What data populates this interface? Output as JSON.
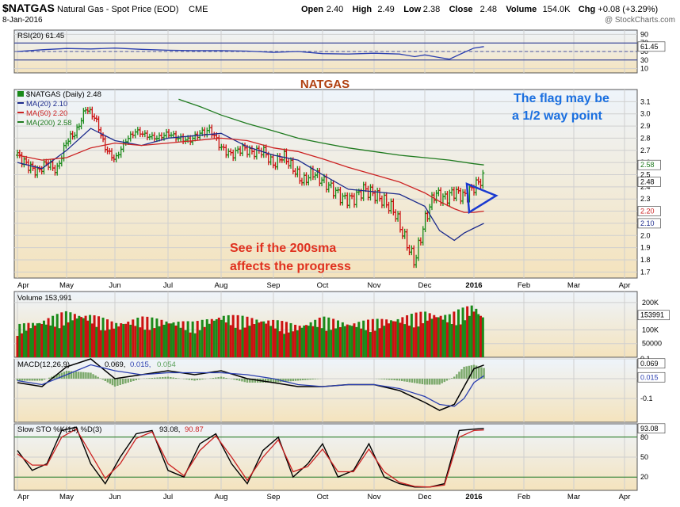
{
  "header": {
    "ticker": "$NATGAS",
    "name": "Natural Gas - Spot Price (EOD)",
    "exchange": "CME",
    "date": "8-Jan-2016",
    "watermark": "@ StockCharts.com",
    "ohlc": [
      {
        "label": "Open",
        "value": "2.40"
      },
      {
        "label": "High",
        "value": "2.49"
      },
      {
        "label": "Low",
        "value": "2.38"
      },
      {
        "label": "Close",
        "value": "2.48"
      },
      {
        "label": "Volume",
        "value": "154.0K"
      },
      {
        "label": "Chg",
        "value": "+0.08 (+3.29%)"
      }
    ]
  },
  "colors": {
    "bg": "#ffffff",
    "panel_top": "#eef4fb",
    "panel_bottom": "#f4e3bd",
    "grid": "#cfcfcf",
    "ma20": "#1b2a8c",
    "ma50": "#cc2222",
    "ma200": "#1e7a1e",
    "up": "#1a8a1a",
    "down": "#cc1111",
    "annotation_red": "#e0301e",
    "annotation_blue": "#1a6fe0",
    "title_orange": "#b04010",
    "triangle": "#1a3ad0"
  },
  "chart_data": [
    {
      "type": "line",
      "title": "RSI(20) 61.45",
      "x_months": [
        "Apr",
        "May",
        "Jun",
        "Jul",
        "Aug",
        "Sep",
        "Oct",
        "Nov",
        "Dec",
        "2016",
        "Feb",
        "Mar",
        "Apr"
      ],
      "ylim": [
        0,
        100
      ],
      "yticks": [
        10,
        30,
        50,
        70,
        90
      ],
      "reference_lines": [
        30,
        70
      ],
      "last_value_label": "61.45",
      "series": [
        {
          "name": "RSI(20)",
          "x": [
            0,
            0.5,
            1,
            1.5,
            2,
            2.5,
            3,
            3.5,
            4,
            4.5,
            5,
            5.5,
            6,
            6.5,
            7,
            7.5,
            7.8,
            8,
            8.3,
            8.5,
            8.8,
            9,
            9.2
          ],
          "y": [
            50,
            54,
            57,
            56,
            58,
            55,
            53,
            52,
            52,
            51,
            48,
            50,
            45,
            44,
            46,
            44,
            38,
            42,
            36,
            32,
            48,
            58,
            61.45
          ]
        }
      ]
    },
    {
      "type": "bar",
      "title": "$NATGAS (Daily) 2.48",
      "chart_label": "NATGAS",
      "x_months": [
        "Apr",
        "May",
        "Jun",
        "Jul",
        "Aug",
        "Sep",
        "Oct",
        "Nov",
        "Dec",
        "2016",
        "Feb",
        "Mar",
        "Apr"
      ],
      "ylim": [
        1.65,
        3.2
      ],
      "yticks": [
        1.7,
        1.8,
        1.9,
        2.0,
        2.1,
        2.2,
        2.3,
        2.4,
        2.5,
        2.6,
        2.7,
        2.8,
        2.9,
        3.0,
        3.1
      ],
      "yaxis_badges": [
        "2.58",
        "2.48",
        "2.20",
        "2.10"
      ],
      "legend": [
        {
          "name": "$NATGAS (Daily) 2.48",
          "color": "#000000"
        },
        {
          "name": "MA(20) 2.10",
          "color": "#1b2a8c"
        },
        {
          "name": "MA(50) 2.20",
          "color": "#cc2222"
        },
        {
          "name": "MA(200) 2.58",
          "color": "#1e7a1e"
        }
      ],
      "series": [
        {
          "name": "$NATGAS (Daily)",
          "x": [
            0,
            0.2,
            0.4,
            0.6,
            0.8,
            1,
            1.2,
            1.4,
            1.6,
            1.8,
            2,
            2.2,
            2.4,
            2.6,
            2.8,
            3,
            3.2,
            3.4,
            3.6,
            3.8,
            4,
            4.2,
            4.4,
            4.6,
            4.8,
            5,
            5.2,
            5.4,
            5.6,
            5.8,
            6,
            6.2,
            6.4,
            6.6,
            6.8,
            7,
            7.2,
            7.4,
            7.6,
            7.8,
            8,
            8.2,
            8.4,
            8.6,
            8.8,
            9,
            9.2
          ],
          "y": [
            2.66,
            2.58,
            2.52,
            2.6,
            2.53,
            2.78,
            2.85,
            3.05,
            2.96,
            2.72,
            2.62,
            2.78,
            2.86,
            2.82,
            2.8,
            2.84,
            2.8,
            2.78,
            2.84,
            2.87,
            2.72,
            2.66,
            2.72,
            2.68,
            2.7,
            2.58,
            2.66,
            2.55,
            2.44,
            2.52,
            2.45,
            2.38,
            2.3,
            2.3,
            2.38,
            2.34,
            2.28,
            2.2,
            1.98,
            1.78,
            2.12,
            2.35,
            2.3,
            2.36,
            2.32,
            2.4,
            2.48
          ]
        },
        {
          "name": "MA(20)",
          "x": [
            0,
            0.5,
            1,
            1.5,
            2,
            2.5,
            3,
            3.5,
            4,
            4.5,
            5,
            5.5,
            6,
            6.5,
            7,
            7.5,
            8,
            8.3,
            8.6,
            8.8,
            9,
            9.2
          ],
          "y": [
            2.6,
            2.55,
            2.7,
            2.88,
            2.78,
            2.74,
            2.8,
            2.82,
            2.84,
            2.73,
            2.66,
            2.62,
            2.5,
            2.38,
            2.36,
            2.34,
            2.24,
            2.04,
            1.96,
            2.02,
            2.06,
            2.1
          ]
        },
        {
          "name": "MA(50)",
          "x": [
            0,
            0.5,
            1,
            1.5,
            2,
            2.5,
            3,
            3.5,
            4,
            4.5,
            5,
            5.5,
            6,
            6.5,
            7,
            7.5,
            8,
            8.3,
            8.6,
            8.8,
            9,
            9.2
          ],
          "y": [
            2.66,
            2.62,
            2.64,
            2.72,
            2.76,
            2.74,
            2.76,
            2.78,
            2.8,
            2.78,
            2.72,
            2.69,
            2.63,
            2.56,
            2.5,
            2.44,
            2.35,
            2.28,
            2.22,
            2.19,
            2.19,
            2.2
          ]
        },
        {
          "name": "MA(200)",
          "x": [
            3.2,
            3.6,
            4,
            4.5,
            5,
            5.5,
            6,
            6.5,
            7,
            7.5,
            8,
            8.5,
            9,
            9.2
          ],
          "y": [
            3.12,
            3.06,
            2.99,
            2.92,
            2.86,
            2.8,
            2.76,
            2.72,
            2.69,
            2.66,
            2.64,
            2.62,
            2.59,
            2.58
          ]
        }
      ],
      "annotations": [
        {
          "text": "The flag may be"
        },
        {
          "text": "a 1/2 way point"
        },
        {
          "text": "See if the 200sma"
        },
        {
          "text": "affects the progress"
        }
      ]
    },
    {
      "type": "bar",
      "title": "Volume 153,991",
      "x_months": [
        "Apr",
        "May",
        "Jun",
        "Jul",
        "Aug",
        "Sep",
        "Oct",
        "Nov",
        "Dec",
        "2016",
        "Feb",
        "Mar",
        "Apr"
      ],
      "ylim": [
        0,
        240000
      ],
      "yticks_labels": [
        "200K",
        "100K",
        "50000"
      ],
      "last_value_label": "153991",
      "series": [
        {
          "name": "Volume",
          "x": [
            0,
            0.5,
            1,
            1.5,
            2,
            2.5,
            3,
            3.5,
            4,
            4.5,
            5,
            5.5,
            6,
            6.5,
            7,
            7.5,
            8,
            8.5,
            9,
            9.2
          ],
          "y": [
            120000,
            140000,
            170000,
            160000,
            130000,
            150000,
            140000,
            130000,
            160000,
            150000,
            140000,
            120000,
            150000,
            130000,
            140000,
            150000,
            170000,
            160000,
            200000,
            153991
          ]
        }
      ]
    },
    {
      "type": "line",
      "title": "MACD(12,26,9) 0.069, 0.015, 0.054",
      "title_parts": {
        "name": "MACD(12,26,9)",
        "macd": "0.069",
        "signal": "0.015",
        "hist": "0.054"
      },
      "x_months": [
        "Apr",
        "May",
        "Jun",
        "Jul",
        "Aug",
        "Sep",
        "Oct",
        "Nov",
        "Dec",
        "2016",
        "Feb",
        "Mar",
        "Apr"
      ],
      "ylim": [
        -0.22,
        0.1
      ],
      "yticks": [
        -0.1,
        0.0,
        0.1
      ],
      "last_value_labels": [
        "0.069",
        "0.015"
      ],
      "series": [
        {
          "name": "MACD",
          "x": [
            0,
            0.5,
            1,
            1.5,
            2,
            2.5,
            3,
            3.5,
            4,
            4.5,
            5,
            5.5,
            6,
            6.5,
            7,
            7.5,
            8,
            8.3,
            8.6,
            8.8,
            9,
            9.2
          ],
          "y": [
            -0.02,
            -0.04,
            0.06,
            0.1,
            0.0,
            0.02,
            0.04,
            0.02,
            0.04,
            0.0,
            -0.02,
            -0.04,
            -0.04,
            -0.03,
            -0.03,
            -0.06,
            -0.12,
            -0.16,
            -0.13,
            -0.04,
            0.05,
            0.069
          ]
        },
        {
          "name": "Signal",
          "x": [
            0,
            0.5,
            1,
            1.5,
            2,
            2.5,
            3,
            3.5,
            4,
            4.5,
            5,
            5.5,
            6,
            6.5,
            7,
            7.5,
            8,
            8.3,
            8.6,
            8.8,
            9,
            9.2
          ],
          "y": [
            -0.01,
            -0.03,
            0.02,
            0.07,
            0.04,
            0.02,
            0.03,
            0.03,
            0.03,
            0.02,
            0.0,
            -0.03,
            -0.04,
            -0.03,
            -0.03,
            -0.05,
            -0.09,
            -0.13,
            -0.14,
            -0.1,
            -0.02,
            0.015
          ]
        }
      ]
    },
    {
      "type": "line",
      "title": "Slow STO %K(14) %D(3) 93.08, 90.87",
      "title_parts": {
        "name": "Slow STO %K(14) %D(3)",
        "k": "93.08",
        "d": "90.87"
      },
      "x_months": [
        "Apr",
        "May",
        "Jun",
        "Jul",
        "Aug",
        "Sep",
        "Oct",
        "Nov",
        "Dec",
        "2016",
        "Feb",
        "Mar",
        "Apr"
      ],
      "ylim": [
        0,
        100
      ],
      "yticks": [
        20,
        50,
        80
      ],
      "reference_lines": [
        20,
        80
      ],
      "last_value_label": "93.08",
      "series": [
        {
          "name": "%K",
          "x": [
            0,
            0.3,
            0.6,
            0.9,
            1.2,
            1.5,
            1.8,
            2.1,
            2.4,
            2.7,
            3,
            3.3,
            3.6,
            3.9,
            4.2,
            4.5,
            4.8,
            5.1,
            5.4,
            5.7,
            6,
            6.3,
            6.6,
            6.9,
            7.2,
            7.5,
            7.8,
            8.1,
            8.4,
            8.7,
            9,
            9.2
          ],
          "y": [
            60,
            30,
            40,
            90,
            95,
            40,
            10,
            50,
            85,
            90,
            30,
            20,
            70,
            85,
            40,
            10,
            60,
            80,
            20,
            40,
            70,
            20,
            30,
            70,
            20,
            10,
            5,
            5,
            10,
            90,
            92,
            93.08
          ]
        },
        {
          "name": "%D",
          "x": [
            0,
            0.3,
            0.6,
            0.9,
            1.2,
            1.5,
            1.8,
            2.1,
            2.4,
            2.7,
            3,
            3.3,
            3.6,
            3.9,
            4.2,
            4.5,
            4.8,
            5.1,
            5.4,
            5.7,
            6,
            6.3,
            6.6,
            6.9,
            7.2,
            7.5,
            7.8,
            8.1,
            8.4,
            8.7,
            9,
            9.2
          ],
          "y": [
            55,
            38,
            38,
            80,
            92,
            55,
            18,
            40,
            78,
            88,
            40,
            22,
            60,
            82,
            50,
            15,
            50,
            76,
            28,
            36,
            62,
            28,
            28,
            62,
            28,
            12,
            6,
            5,
            8,
            80,
            90,
            90.87
          ]
        }
      ]
    }
  ]
}
